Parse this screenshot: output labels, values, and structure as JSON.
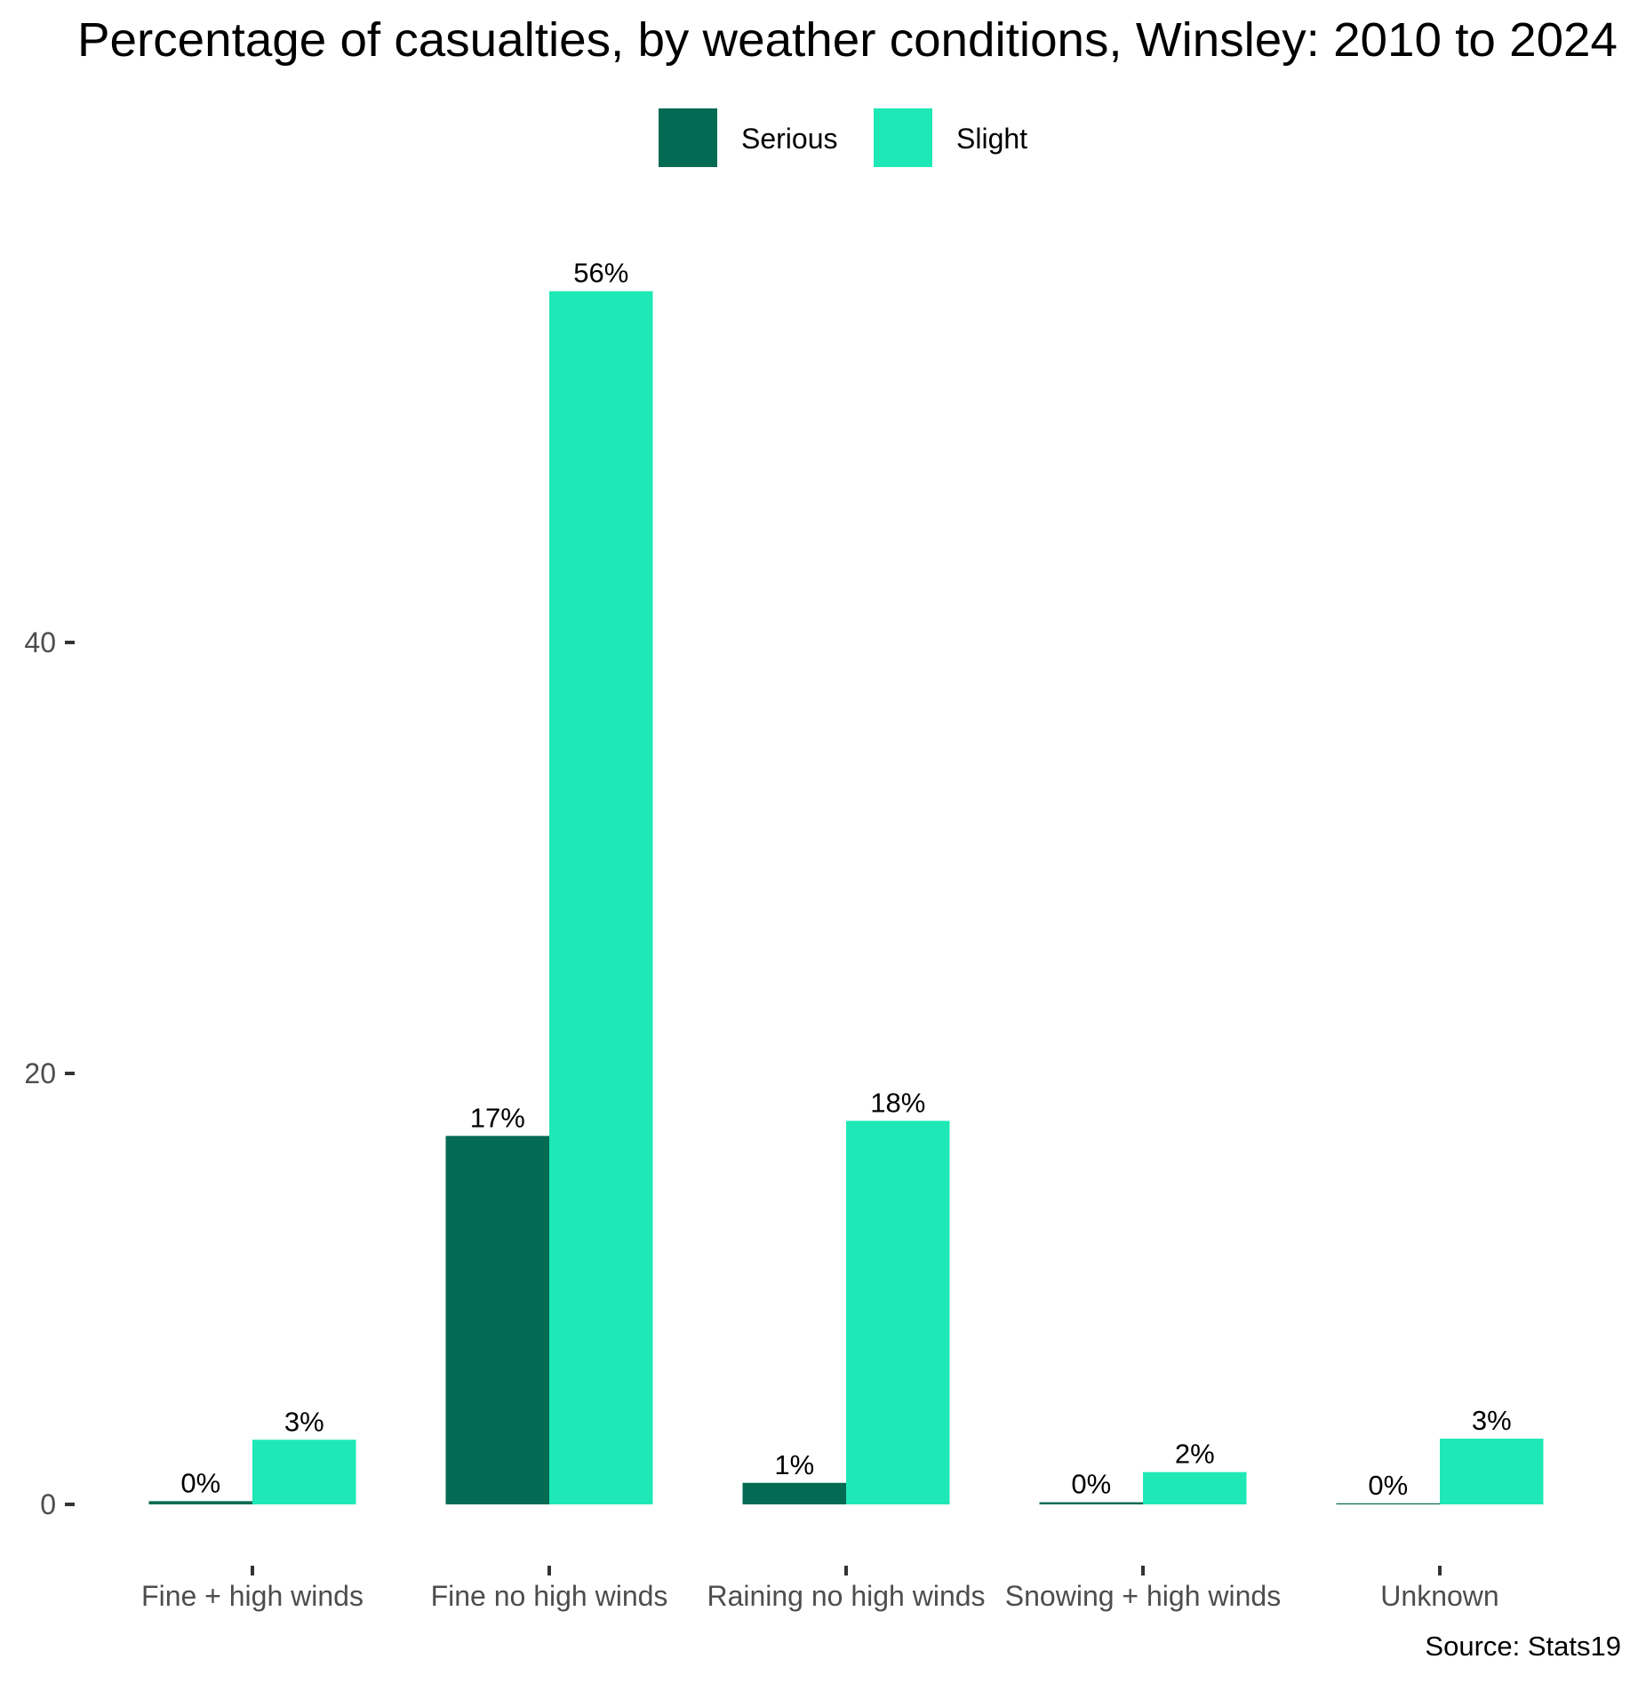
{
  "chart_data": {
    "type": "bar",
    "title": "Percentage of casualties, by weather conditions, Winsley: 2010 to 2024",
    "caption": "Source: Stats19",
    "xlabel": "",
    "ylabel": "",
    "ylim": [
      0,
      57
    ],
    "yticks": [
      0,
      20,
      40
    ],
    "ytick_labels": [
      "0",
      "20",
      "40"
    ],
    "grid": false,
    "legend_position": "top",
    "categories": [
      "Fine + high winds",
      "Fine no high winds",
      "Raining no high winds",
      "Snowing + high winds",
      "Unknown"
    ],
    "series": [
      {
        "name": "Serious",
        "color": "#036a54",
        "values": [
          0.15,
          17.1,
          1.0,
          0.1,
          0.05
        ],
        "labels": [
          "0%",
          "17%",
          "1%",
          "0%",
          "0%"
        ]
      },
      {
        "name": "Slight",
        "color": "#1ee8b6",
        "values": [
          3.0,
          56.3,
          17.8,
          1.5,
          3.05
        ],
        "labels": [
          "3%",
          "56%",
          "18%",
          "2%",
          "3%"
        ]
      }
    ]
  }
}
